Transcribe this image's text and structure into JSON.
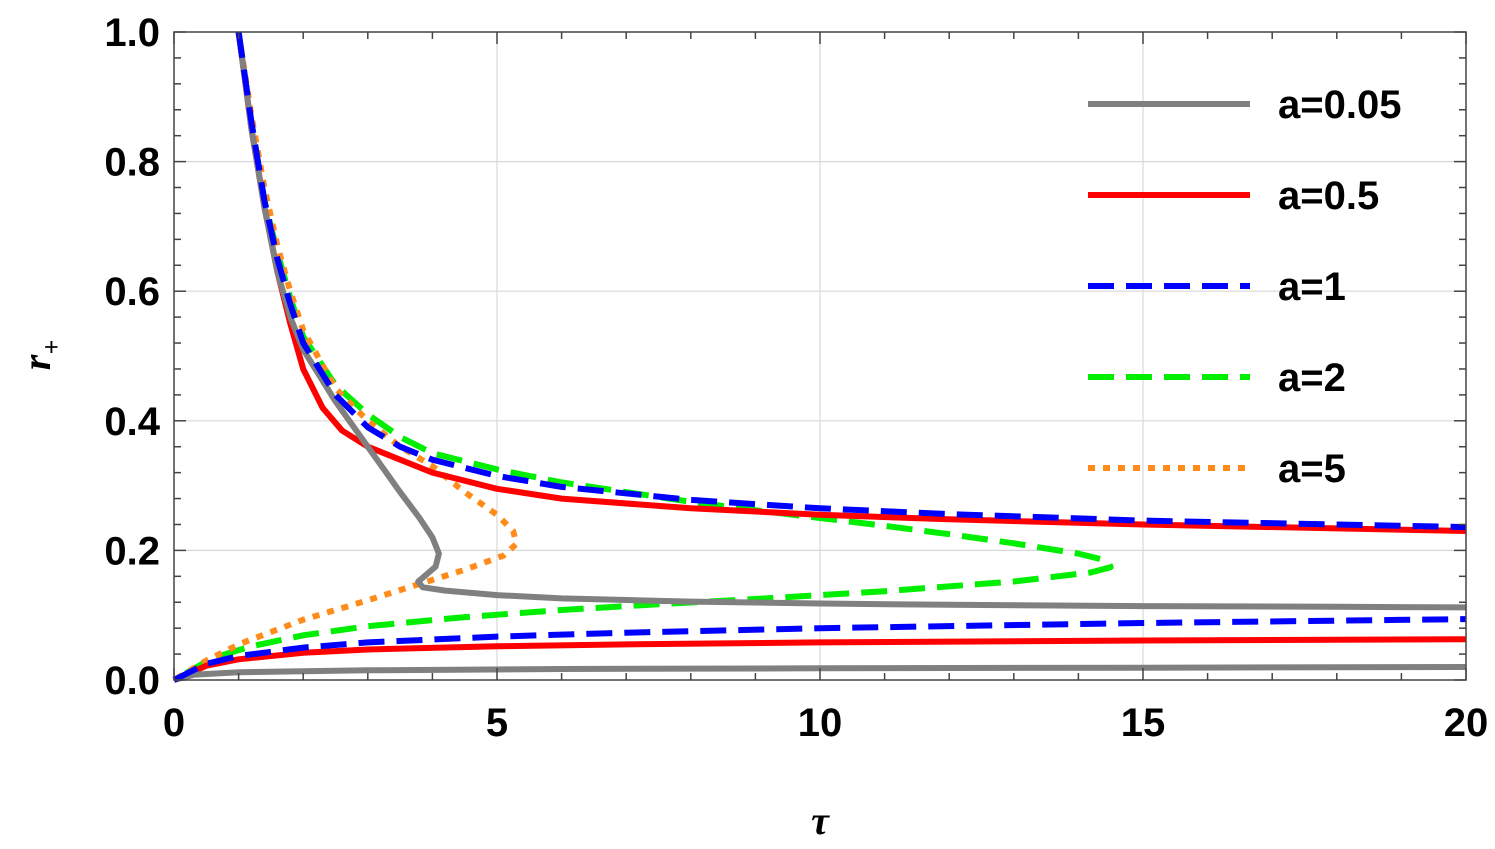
{
  "chart_data": {
    "type": "line",
    "title": "",
    "xlabel": "τ",
    "ylabel_main": "r",
    "ylabel_sub": "+",
    "xlim": [
      0,
      20
    ],
    "ylim": [
      0,
      1
    ],
    "xticks": [
      0,
      5,
      10,
      15,
      20
    ],
    "xtick_labels": [
      "0",
      "5",
      "10",
      "15",
      "20"
    ],
    "yticks": [
      0.0,
      0.2,
      0.4,
      0.6,
      0.8,
      1.0
    ],
    "ytick_labels": [
      "0.0",
      "0.2",
      "0.4",
      "0.6",
      "0.8",
      "1.0"
    ],
    "grid": true,
    "legend_position": "top-right",
    "series": [
      {
        "name": "a=0.05",
        "color": "#808080",
        "style": "solid",
        "points": [
          [
            1.0,
            1.0
          ],
          [
            1.2,
            0.85
          ],
          [
            1.4,
            0.73
          ],
          [
            1.6,
            0.63
          ],
          [
            1.8,
            0.56
          ],
          [
            2.0,
            0.51
          ],
          [
            2.5,
            0.43
          ],
          [
            3.0,
            0.36
          ],
          [
            3.5,
            0.29
          ],
          [
            3.8,
            0.25
          ],
          [
            4.0,
            0.22
          ],
          [
            4.1,
            0.195
          ],
          [
            4.05,
            0.175
          ],
          [
            3.9,
            0.162
          ],
          [
            3.78,
            0.152
          ],
          [
            3.85,
            0.143
          ],
          [
            4.2,
            0.138
          ],
          [
            5.0,
            0.131
          ],
          [
            6.0,
            0.126
          ],
          [
            8.0,
            0.121
          ],
          [
            10.0,
            0.118
          ],
          [
            12.0,
            0.116
          ],
          [
            15.0,
            0.114
          ],
          [
            18.0,
            0.113
          ],
          [
            20.0,
            0.112
          ]
        ],
        "points_lower": [
          [
            0.0,
            0.0
          ],
          [
            0.3,
            0.008
          ],
          [
            1.0,
            0.012
          ],
          [
            3.0,
            0.015
          ],
          [
            6.0,
            0.017
          ],
          [
            10.0,
            0.018
          ],
          [
            15.0,
            0.019
          ],
          [
            20.0,
            0.02
          ]
        ]
      },
      {
        "name": "a=0.5",
        "color": "#ff0000",
        "style": "solid",
        "points": [
          [
            1.0,
            1.0
          ],
          [
            1.2,
            0.85
          ],
          [
            1.4,
            0.73
          ],
          [
            1.6,
            0.63
          ],
          [
            1.8,
            0.55
          ],
          [
            2.0,
            0.48
          ],
          [
            2.3,
            0.42
          ],
          [
            2.6,
            0.385
          ],
          [
            3.0,
            0.36
          ],
          [
            4.0,
            0.32
          ],
          [
            5.0,
            0.295
          ],
          [
            6.0,
            0.28
          ],
          [
            8.0,
            0.265
          ],
          [
            10.0,
            0.255
          ],
          [
            12.0,
            0.248
          ],
          [
            15.0,
            0.24
          ],
          [
            18.0,
            0.234
          ],
          [
            20.0,
            0.23
          ]
        ],
        "points_lower": [
          [
            0.0,
            0.0
          ],
          [
            0.5,
            0.022
          ],
          [
            1.0,
            0.032
          ],
          [
            2.0,
            0.042
          ],
          [
            3.0,
            0.047
          ],
          [
            5.0,
            0.052
          ],
          [
            7.0,
            0.055
          ],
          [
            10.0,
            0.058
          ],
          [
            15.0,
            0.061
          ],
          [
            20.0,
            0.063
          ]
        ]
      },
      {
        "name": "a=1",
        "color": "#0000ff",
        "style": "dashed",
        "points": [
          [
            1.0,
            1.0
          ],
          [
            1.2,
            0.86
          ],
          [
            1.4,
            0.74
          ],
          [
            1.6,
            0.65
          ],
          [
            1.8,
            0.58
          ],
          [
            2.0,
            0.52
          ],
          [
            2.5,
            0.44
          ],
          [
            3.0,
            0.39
          ],
          [
            3.5,
            0.36
          ],
          [
            4.0,
            0.34
          ],
          [
            5.0,
            0.315
          ],
          [
            6.0,
            0.298
          ],
          [
            8.0,
            0.278
          ],
          [
            10.0,
            0.265
          ],
          [
            12.0,
            0.256
          ],
          [
            15.0,
            0.246
          ],
          [
            18.0,
            0.24
          ],
          [
            20.0,
            0.236
          ]
        ],
        "points_lower": [
          [
            0.0,
            0.0
          ],
          [
            0.5,
            0.025
          ],
          [
            1.0,
            0.037
          ],
          [
            2.0,
            0.05
          ],
          [
            3.0,
            0.058
          ],
          [
            5.0,
            0.067
          ],
          [
            7.0,
            0.073
          ],
          [
            10.0,
            0.08
          ],
          [
            15.0,
            0.088
          ],
          [
            20.0,
            0.094
          ]
        ]
      },
      {
        "name": "a=2",
        "color": "#00ee00",
        "style": "dashed",
        "points": [
          [
            1.0,
            1.0
          ],
          [
            1.2,
            0.86
          ],
          [
            1.4,
            0.74
          ],
          [
            1.6,
            0.66
          ],
          [
            1.8,
            0.59
          ],
          [
            2.0,
            0.53
          ],
          [
            2.5,
            0.455
          ],
          [
            3.0,
            0.41
          ],
          [
            3.5,
            0.375
          ],
          [
            4.0,
            0.35
          ],
          [
            5.0,
            0.325
          ],
          [
            6.0,
            0.305
          ],
          [
            7.0,
            0.29
          ],
          [
            8.0,
            0.275
          ],
          [
            9.0,
            0.262
          ],
          [
            10.0,
            0.25
          ],
          [
            11.0,
            0.238
          ],
          [
            12.0,
            0.225
          ],
          [
            13.0,
            0.211
          ],
          [
            14.0,
            0.195
          ],
          [
            14.45,
            0.184
          ],
          [
            14.5,
            0.174
          ],
          [
            14.2,
            0.166
          ],
          [
            13.0,
            0.152
          ],
          [
            11.0,
            0.137
          ],
          [
            9.0,
            0.125
          ],
          [
            7.5,
            0.117
          ],
          [
            6.0,
            0.108
          ],
          [
            4.5,
            0.097
          ],
          [
            3.0,
            0.083
          ],
          [
            2.0,
            0.069
          ],
          [
            1.2,
            0.052
          ],
          [
            0.6,
            0.034
          ],
          [
            0.0,
            0.0
          ]
        ],
        "points_lower": []
      },
      {
        "name": "a=5",
        "color": "#ff8c1a",
        "style": "dotted",
        "points": [
          [
            1.0,
            1.0
          ],
          [
            1.2,
            0.87
          ],
          [
            1.4,
            0.76
          ],
          [
            1.6,
            0.67
          ],
          [
            1.8,
            0.6
          ],
          [
            2.0,
            0.54
          ],
          [
            2.5,
            0.45
          ],
          [
            3.0,
            0.4
          ],
          [
            3.5,
            0.36
          ],
          [
            4.0,
            0.33
          ],
          [
            4.5,
            0.29
          ],
          [
            5.0,
            0.255
          ],
          [
            5.25,
            0.23
          ],
          [
            5.3,
            0.21
          ],
          [
            5.1,
            0.192
          ],
          [
            4.5,
            0.17
          ],
          [
            3.7,
            0.145
          ],
          [
            3.0,
            0.123
          ],
          [
            2.0,
            0.093
          ],
          [
            1.0,
            0.055
          ],
          [
            0.5,
            0.03
          ],
          [
            0.0,
            0.0
          ]
        ],
        "points_lower": []
      }
    ]
  }
}
